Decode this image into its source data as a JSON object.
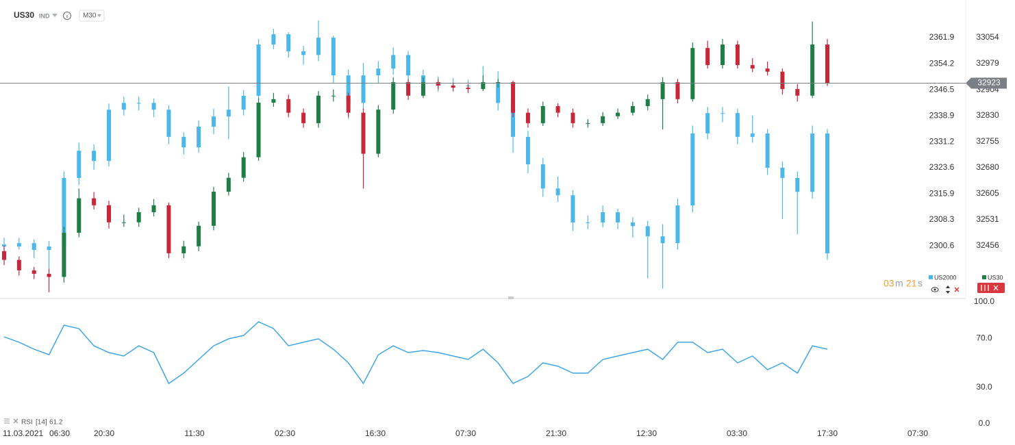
{
  "chart_data": [
    {
      "type": "candlestick",
      "symbol": "US30",
      "instrument_type": "IND",
      "timeframe": "M30",
      "countdown": [
        "03",
        "m",
        "21",
        "s"
      ],
      "start_date": "11.03.2021",
      "x_labels": [
        "06:30",
        "20:30",
        "11:30",
        "02:30",
        "16:30",
        "07:30",
        "21:30",
        "12:30",
        "03:30",
        "17:30",
        "07:30"
      ],
      "ylim": [
        32306,
        33162
      ],
      "yticks": [
        32456,
        32531,
        32605,
        32680,
        32755,
        32830,
        32904,
        32979,
        33054
      ],
      "y2lim": [
        2285.3,
        2373.0
      ],
      "y2ticks": [
        2300.6,
        2308.3,
        2315.9,
        2323.6,
        2331.2,
        2338.9,
        2346.5,
        2354.2,
        2361.9
      ],
      "last_price": 32923,
      "last_price_color": "#7b7f86",
      "series": [
        {
          "name": "US2000",
          "axis": "y2",
          "color": "#4cb8ea",
          "ohlc": [
            [
              2301.0,
              2303.0,
              2298.5,
              2300.4
            ],
            [
              2300.4,
              2303.0,
              2299.5,
              2301.4
            ],
            [
              2301.4,
              2302.5,
              2297.0,
              2299.4
            ],
            [
              2299.4,
              2302.0,
              2294.0,
              2300.4
            ],
            [
              2300.4,
              2322.5,
              2299.0,
              2320.6
            ],
            [
              2320.6,
              2331.0,
              2318.5,
              2328.6
            ],
            [
              2328.6,
              2330.5,
              2323.0,
              2325.6
            ],
            [
              2325.6,
              2342.5,
              2324.0,
              2340.7
            ],
            [
              2340.7,
              2344.5,
              2339.0,
              2342.7
            ],
            [
              2342.7,
              2344.5,
              2340.5,
              2342.7
            ],
            [
              2342.7,
              2344.0,
              2338.5,
              2340.7
            ],
            [
              2340.7,
              2342.0,
              2330.5,
              2332.7
            ],
            [
              2332.7,
              2334.0,
              2327.5,
              2329.6
            ],
            [
              2329.6,
              2337.5,
              2328.0,
              2335.7
            ],
            [
              2335.7,
              2341.0,
              2333.5,
              2338.7
            ],
            [
              2338.7,
              2347.5,
              2332.0,
              2340.7
            ],
            [
              2340.7,
              2346.5,
              2339.0,
              2344.8
            ],
            [
              2344.8,
              2361.5,
              2343.0,
              2359.9
            ],
            [
              2359.9,
              2364.5,
              2358.5,
              2362.9
            ],
            [
              2362.9,
              2363.5,
              2356.0,
              2357.9
            ],
            [
              2357.9,
              2359.5,
              2354.0,
              2356.8
            ],
            [
              2356.8,
              2367.0,
              2355.0,
              2361.9
            ],
            [
              2361.9,
              2362.5,
              2348.5,
              2350.8
            ],
            [
              2350.8,
              2352.5,
              2338.0,
              2342.7
            ],
            [
              2342.7,
              2354.5,
              2340.5,
              2350.8
            ],
            [
              2350.8,
              2355.0,
              2348.5,
              2352.8
            ],
            [
              2352.8,
              2359.0,
              2351.0,
              2356.8
            ],
            [
              2356.8,
              2358.0,
              2349.0,
              2350.8
            ],
            [
              2350.8,
              2352.5,
              2347.0,
              2348.8
            ],
            [
              2348.8,
              2350.5,
              2346.0,
              2347.8
            ],
            [
              2347.8,
              2350.0,
              2346.0,
              2347.8
            ],
            [
              2347.8,
              2349.5,
              2345.5,
              2347.8
            ],
            [
              2347.8,
              2353.5,
              2346.5,
              2348.8
            ],
            [
              2348.8,
              2352.0,
              2340.5,
              2342.7
            ],
            [
              2342.7,
              2344.5,
              2328.0,
              2332.7
            ],
            [
              2332.7,
              2334.5,
              2322.0,
              2324.6
            ],
            [
              2324.6,
              2326.5,
              2315.0,
              2317.5
            ],
            [
              2317.5,
              2321.0,
              2313.5,
              2315.5
            ],
            [
              2315.5,
              2317.0,
              2305.0,
              2307.5
            ],
            [
              2307.5,
              2309.5,
              2305.5,
              2307.5
            ],
            [
              2307.5,
              2312.5,
              2306.0,
              2310.5
            ],
            [
              2310.5,
              2311.5,
              2305.5,
              2307.5
            ],
            [
              2307.5,
              2309.0,
              2303.0,
              2306.4
            ],
            [
              2306.4,
              2308.0,
              2291.0,
              2303.4
            ],
            [
              2303.4,
              2307.0,
              2288.0,
              2301.4
            ],
            [
              2301.4,
              2314.5,
              2299.5,
              2312.5
            ],
            [
              2312.5,
              2336.0,
              2310.5,
              2333.7
            ],
            [
              2333.7,
              2341.5,
              2332.0,
              2339.7
            ],
            [
              2339.7,
              2341.5,
              2337.0,
              2339.7
            ],
            [
              2339.7,
              2341.0,
              2330.5,
              2332.7
            ],
            [
              2332.7,
              2339.0,
              2331.0,
              2333.7
            ],
            [
              2333.7,
              2335.0,
              2321.5,
              2323.6
            ],
            [
              2323.6,
              2325.5,
              2308.5,
              2320.6
            ],
            [
              2320.6,
              2322.5,
              2304.0,
              2316.5
            ],
            [
              2316.5,
              2336.0,
              2314.5,
              2333.7
            ],
            [
              2333.7,
              2335.0,
              2296.5,
              2298.4
            ]
          ]
        },
        {
          "name": "US30",
          "axis": "y",
          "color": "#1e7e46",
          "up_color": "#1e7e46",
          "down_color": "#c8273a",
          "ohlc": [
            [
              32440,
              32455,
              32400,
              32415
            ],
            [
              32415,
              32425,
              32370,
              32385
            ],
            [
              32385,
              32395,
              32360,
              32375
            ],
            [
              32375,
              32390,
              32322,
              32366
            ],
            [
              32366,
              32510,
              32350,
              32493
            ],
            [
              32493,
              32620,
              32480,
              32592
            ],
            [
              32592,
              32610,
              32560,
              32572
            ],
            [
              32572,
              32585,
              32505,
              32523
            ],
            [
              32523,
              32545,
              32510,
              32523
            ],
            [
              32523,
              32565,
              32510,
              32552
            ],
            [
              32552,
              32590,
              32540,
              32572
            ],
            [
              32572,
              32580,
              32420,
              32434
            ],
            [
              32434,
              32470,
              32420,
              32454
            ],
            [
              32454,
              32525,
              32440,
              32513
            ],
            [
              32513,
              32625,
              32500,
              32611
            ],
            [
              32611,
              32665,
              32600,
              32651
            ],
            [
              32651,
              32725,
              32640,
              32710
            ],
            [
              32710,
              32880,
              32700,
              32867
            ],
            [
              32867,
              32895,
              32855,
              32877
            ],
            [
              32877,
              32890,
              32825,
              32838
            ],
            [
              32838,
              32850,
              32795,
              32808
            ],
            [
              32808,
              32900,
              32795,
              32887
            ],
            [
              32887,
              32905,
              32870,
              32887
            ],
            [
              32887,
              32895,
              32825,
              32838
            ],
            [
              32838,
              32850,
              32620,
              32720
            ],
            [
              32720,
              32860,
              32710,
              32847
            ],
            [
              32847,
              32940,
              32835,
              32926
            ],
            [
              32926,
              32935,
              32875,
              32887
            ],
            [
              32887,
              32940,
              32880,
              32926
            ],
            [
              32926,
              32935,
              32905,
              32916
            ],
            [
              32916,
              32925,
              32900,
              32910
            ],
            [
              32910,
              32920,
              32895,
              32906
            ],
            [
              32906,
              32945,
              32900,
              32926
            ],
            [
              32926,
              32935,
              32910,
              32926
            ],
            [
              32926,
              32930,
              32825,
              32838
            ],
            [
              32838,
              32850,
              32795,
              32808
            ],
            [
              32808,
              32870,
              32800,
              32857
            ],
            [
              32857,
              32865,
              32825,
              32838
            ],
            [
              32838,
              32850,
              32795,
              32808
            ],
            [
              32808,
              32820,
              32795,
              32808
            ],
            [
              32808,
              32840,
              32800,
              32828
            ],
            [
              32828,
              32850,
              32820,
              32838
            ],
            [
              32838,
              32870,
              32830,
              32857
            ],
            [
              32857,
              32890,
              32845,
              32877
            ],
            [
              32877,
              32940,
              32790,
              32926
            ],
            [
              32926,
              32935,
              32865,
              32877
            ],
            [
              32877,
              33040,
              32870,
              33024
            ],
            [
              33024,
              33045,
              32965,
              32975
            ],
            [
              32975,
              33050,
              32965,
              33034
            ],
            [
              33034,
              33045,
              32965,
              32975
            ],
            [
              32975,
              32995,
              32955,
              32965
            ],
            [
              32965,
              32985,
              32945,
              32956
            ],
            [
              32956,
              32965,
              32890,
              32906
            ],
            [
              32906,
              32920,
              32870,
              32887
            ],
            [
              32887,
              33100,
              32880,
              33034
            ],
            [
              33034,
              33050,
              32915,
              32923
            ]
          ]
        }
      ]
    },
    {
      "type": "line",
      "parameters": "[14]",
      "current_value": 61.2,
      "ylim": [
        0,
        100
      ],
      "yticks": [
        {
          "value": 0,
          "label": "0.0"
        },
        {
          "value": 30,
          "label": "30.0"
        },
        {
          "value": 70,
          "label": "70.0"
        },
        {
          "value": 100,
          "label": "100.0"
        }
      ],
      "series": [
        {
          "name": "RSI",
          "color": "#3ea6e8",
          "values": [
            71.3,
            66.9,
            61.2,
            56.7,
            80.9,
            78.1,
            64.0,
            58.4,
            55.6,
            64.0,
            58.4,
            33.1,
            41.6,
            52.8,
            64.0,
            69.7,
            72.5,
            83.7,
            78.1,
            64.0,
            66.9,
            69.7,
            61.2,
            50.0,
            33.1,
            56.7,
            64.0,
            58.4,
            60.1,
            58.4,
            55.6,
            52.8,
            61.2,
            50.0,
            33.1,
            38.8,
            50.0,
            47.2,
            41.6,
            41.6,
            52.8,
            55.6,
            58.4,
            61.2,
            52.8,
            66.9,
            66.9,
            58.4,
            61.2,
            50.0,
            55.6,
            44.4,
            50.0,
            41.6,
            64.0,
            61.2
          ]
        }
      ]
    }
  ]
}
